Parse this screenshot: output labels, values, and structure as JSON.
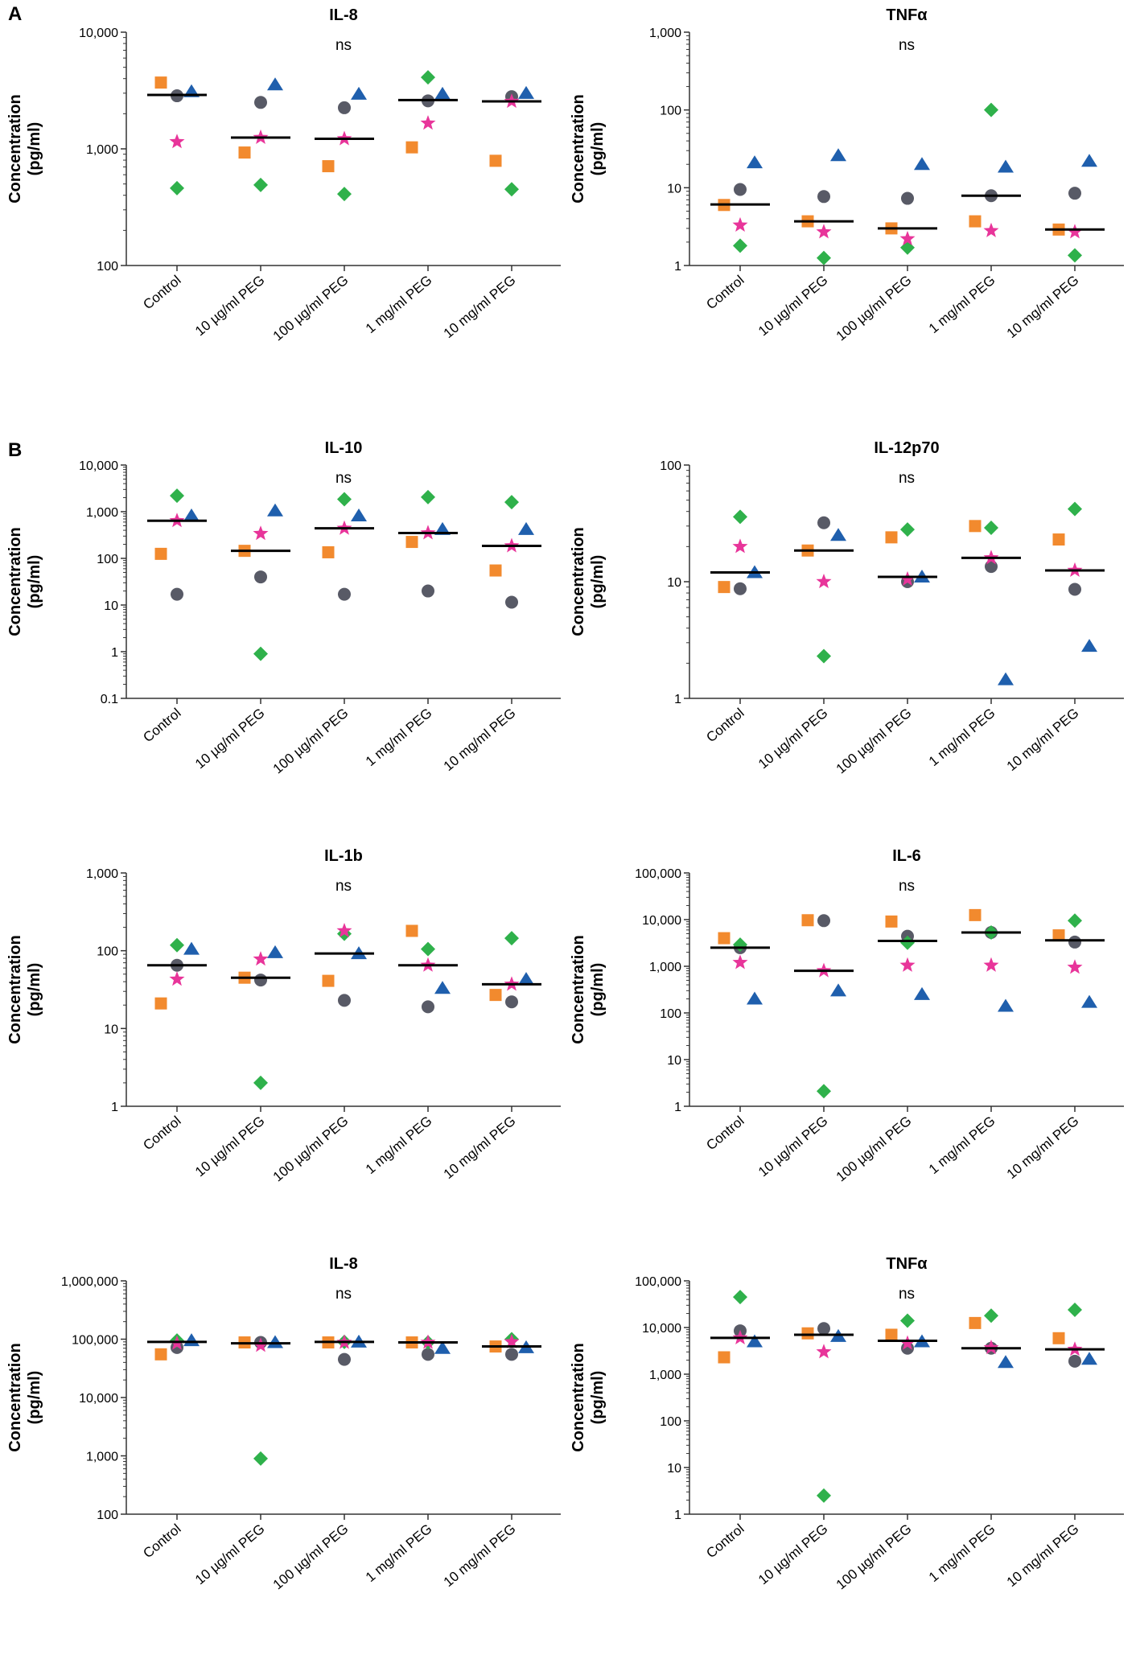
{
  "panel_labels": [
    "A",
    "B"
  ],
  "x_categories": [
    "Control",
    "10 µg/ml PEG",
    "100 µg/ml PEG",
    "1 mg/ml PEG",
    "10 mg/ml PEG"
  ],
  "colors": {
    "blue": "#1f5fad",
    "gray": "#585a66",
    "orange": "#f28a2e",
    "green": "#2fb14b",
    "pink": "#e8359a"
  },
  "chart_data": [
    {
      "type": "scatter",
      "title": "IL-8",
      "annotation": "ns",
      "ylabel": "Concentration (pg/ml)",
      "yscale": "log",
      "ylim": [
        100,
        10000
      ],
      "yticks": [
        100,
        1000,
        10000
      ],
      "ytick_labels": [
        "100",
        "1,000",
        "10,000"
      ],
      "categories": [
        "Control",
        "10 µg/ml PEG",
        "100 µg/ml PEG",
        "1 mg/ml PEG",
        "10 mg/ml PEG"
      ],
      "medians": [
        2900,
        1250,
        1220,
        2620,
        2550
      ],
      "series": [
        {
          "name": "triangle",
          "color": "blue",
          "values": [
            3100,
            3550,
            2950,
            2950,
            3000
          ]
        },
        {
          "name": "circle",
          "color": "gray",
          "values": [
            2850,
            2500,
            2250,
            2580,
            2800
          ]
        },
        {
          "name": "square",
          "color": "orange",
          "values": [
            3700,
            930,
            710,
            1030,
            790
          ]
        },
        {
          "name": "diamond",
          "color": "green",
          "values": [
            460,
            490,
            410,
            4100,
            450
          ]
        },
        {
          "name": "star",
          "color": "pink",
          "values": [
            1150,
            1250,
            1220,
            1660,
            2550
          ]
        }
      ]
    },
    {
      "type": "scatter",
      "title": "TNFα",
      "annotation": "ns",
      "ylabel": "Concentration (pg/ml)",
      "yscale": "log",
      "ylim": [
        1,
        1000
      ],
      "yticks": [
        1,
        10,
        100,
        1000
      ],
      "ytick_labels": [
        "1",
        "10",
        "100",
        "1,000"
      ],
      "categories": [
        "Control",
        "10 µg/ml PEG",
        "100 µg/ml PEG",
        "1 mg/ml PEG",
        "10 mg/ml PEG"
      ],
      "medians": [
        6.1,
        3.7,
        3.0,
        7.9,
        2.9
      ],
      "series": [
        {
          "name": "triangle",
          "color": "blue",
          "values": [
            21,
            26,
            20,
            18.5,
            22
          ]
        },
        {
          "name": "circle",
          "color": "gray",
          "values": [
            9.5,
            7.7,
            7.3,
            7.9,
            8.5
          ]
        },
        {
          "name": "square",
          "color": "orange",
          "values": [
            6.0,
            3.7,
            3.0,
            3.7,
            2.9
          ]
        },
        {
          "name": "diamond",
          "color": "green",
          "values": [
            1.8,
            1.25,
            1.7,
            100,
            1.35
          ]
        },
        {
          "name": "star",
          "color": "pink",
          "values": [
            3.3,
            2.7,
            2.2,
            2.8,
            2.7
          ]
        }
      ]
    },
    {
      "type": "scatter",
      "title": "IL-10",
      "annotation": "ns",
      "ylabel": "Concentration (pg/ml)",
      "yscale": "log",
      "ylim": [
        0.1,
        10000
      ],
      "yticks": [
        0.1,
        1,
        10,
        100,
        1000,
        10000
      ],
      "ytick_labels": [
        "0.1",
        "1",
        "10",
        "100",
        "1,000",
        "10,000"
      ],
      "categories": [
        "Control",
        "10 µg/ml PEG",
        "100 µg/ml PEG",
        "1 mg/ml PEG",
        "10 mg/ml PEG"
      ],
      "medians": [
        640,
        145,
        440,
        350,
        185
      ],
      "series": [
        {
          "name": "triangle",
          "color": "blue",
          "values": [
            820,
            1050,
            820,
            420,
            420
          ]
        },
        {
          "name": "circle",
          "color": "gray",
          "values": [
            17,
            40,
            17,
            20,
            11.5
          ]
        },
        {
          "name": "square",
          "color": "orange",
          "values": [
            125,
            145,
            135,
            225,
            55
          ]
        },
        {
          "name": "diamond",
          "color": "green",
          "values": [
            2200,
            0.9,
            1850,
            2050,
            1600
          ]
        },
        {
          "name": "star",
          "color": "pink",
          "values": [
            640,
            340,
            440,
            350,
            185
          ]
        }
      ]
    },
    {
      "type": "scatter",
      "title": "IL-12p70",
      "annotation": "ns",
      "ylabel": "Concentration (pg/ml)",
      "yscale": "log",
      "ylim": [
        1,
        100
      ],
      "yticks": [
        1,
        10,
        100
      ],
      "ytick_labels": [
        "1",
        "10",
        "100"
      ],
      "categories": [
        "Control",
        "10 µg/ml PEG",
        "100 µg/ml PEG",
        "1 mg/ml PEG",
        "10 mg/ml PEG"
      ],
      "medians": [
        12,
        18.5,
        11,
        16,
        12.5
      ],
      "series": [
        {
          "name": "triangle",
          "color": "blue",
          "values": [
            12,
            25,
            11,
            1.45,
            2.8
          ]
        },
        {
          "name": "circle",
          "color": "gray",
          "values": [
            8.7,
            32,
            10,
            13.5,
            8.6
          ]
        },
        {
          "name": "square",
          "color": "orange",
          "values": [
            9.0,
            18.5,
            24,
            30,
            23
          ]
        },
        {
          "name": "diamond",
          "color": "green",
          "values": [
            36,
            2.3,
            28,
            29,
            42
          ]
        },
        {
          "name": "star",
          "color": "pink",
          "values": [
            20,
            10,
            10.5,
            16,
            12.5
          ]
        }
      ]
    },
    {
      "type": "scatter",
      "title": "IL-1b",
      "annotation": "ns",
      "ylabel": "Concentration (pg/ml)",
      "yscale": "log",
      "ylim": [
        1,
        1000
      ],
      "yticks": [
        1,
        10,
        100,
        1000
      ],
      "ytick_labels": [
        "1",
        "10",
        "100",
        "1,000"
      ],
      "categories": [
        "Control",
        "10 µg/ml PEG",
        "100 µg/ml PEG",
        "1 mg/ml PEG",
        "10 mg/ml PEG"
      ],
      "medians": [
        65,
        45,
        92,
        65,
        37
      ],
      "series": [
        {
          "name": "triangle",
          "color": "blue",
          "values": [
            105,
            95,
            92,
            33,
            43
          ]
        },
        {
          "name": "circle",
          "color": "gray",
          "values": [
            65,
            42,
            23,
            19,
            22
          ]
        },
        {
          "name": "square",
          "color": "orange",
          "values": [
            21,
            45,
            41,
            180,
            27
          ]
        },
        {
          "name": "diamond",
          "color": "green",
          "values": [
            118,
            2.0,
            165,
            105,
            145
          ]
        },
        {
          "name": "star",
          "color": "pink",
          "values": [
            43,
            78,
            180,
            65,
            37
          ]
        }
      ]
    },
    {
      "type": "scatter",
      "title": "IL-6",
      "annotation": "ns",
      "ylabel": "Concentration (pg/ml)",
      "yscale": "log",
      "ylim": [
        1,
        100000
      ],
      "yticks": [
        1,
        10,
        100,
        1000,
        10000,
        100000
      ],
      "ytick_labels": [
        "1",
        "10",
        "100",
        "1,000",
        "10,000",
        "100,000"
      ],
      "categories": [
        "Control",
        "10 µg/ml PEG",
        "100 µg/ml PEG",
        "1 mg/ml PEG",
        "10 mg/ml PEG"
      ],
      "medians": [
        2500,
        800,
        3500,
        5300,
        3600
      ],
      "series": [
        {
          "name": "triangle",
          "color": "blue",
          "values": [
            200,
            300,
            250,
            140,
            170
          ]
        },
        {
          "name": "circle",
          "color": "gray",
          "values": [
            2500,
            9500,
            4400,
            5300,
            3300
          ]
        },
        {
          "name": "square",
          "color": "orange",
          "values": [
            4000,
            9700,
            9100,
            12500,
            4600
          ]
        },
        {
          "name": "diamond",
          "color": "green",
          "values": [
            2900,
            2.1,
            3200,
            5300,
            9500
          ]
        },
        {
          "name": "star",
          "color": "pink",
          "values": [
            1200,
            800,
            1050,
            1050,
            950
          ]
        }
      ]
    },
    {
      "type": "scatter",
      "title": "IL-8",
      "annotation": "ns",
      "ylabel": "Concentration (pg/ml)",
      "yscale": "log",
      "ylim": [
        100,
        1000000
      ],
      "yticks": [
        100,
        1000,
        10000,
        100000,
        1000000
      ],
      "ytick_labels": [
        "100",
        "1,000",
        "10,000",
        "100,000",
        "1,000,000"
      ],
      "categories": [
        "Control",
        "10 µg/ml PEG",
        "100 µg/ml PEG",
        "1 mg/ml PEG",
        "10 mg/ml PEG"
      ],
      "medians": [
        90000,
        85000,
        90000,
        88000,
        75000
      ],
      "series": [
        {
          "name": "triangle",
          "color": "blue",
          "values": [
            95000,
            88000,
            90000,
            70000,
            72000
          ]
        },
        {
          "name": "circle",
          "color": "gray",
          "values": [
            72000,
            88000,
            45000,
            55000,
            55000
          ]
        },
        {
          "name": "square",
          "color": "orange",
          "values": [
            55000,
            88000,
            88000,
            88000,
            75000
          ]
        },
        {
          "name": "diamond",
          "color": "green",
          "values": [
            95000,
            900,
            90000,
            88000,
            100000
          ]
        },
        {
          "name": "star",
          "color": "pink",
          "values": [
            85000,
            78000,
            88000,
            88000,
            90000
          ]
        }
      ]
    },
    {
      "type": "scatter",
      "title": "TNFα",
      "annotation": "ns",
      "ylabel": "Concentration (pg/ml)",
      "yscale": "log",
      "ylim": [
        1,
        100000
      ],
      "yticks": [
        1,
        10,
        100,
        1000,
        10000,
        100000
      ],
      "ytick_labels": [
        "1",
        "10",
        "100",
        "1,000",
        "10,000",
        "100,000"
      ],
      "categories": [
        "Control",
        "10 µg/ml PEG",
        "100 µg/ml PEG",
        "1 mg/ml PEG",
        "10 mg/ml PEG"
      ],
      "medians": [
        6000,
        7000,
        5200,
        3600,
        3400
      ],
      "series": [
        {
          "name": "triangle",
          "color": "blue",
          "values": [
            5000,
            6500,
            5000,
            1800,
            2100
          ]
        },
        {
          "name": "circle",
          "color": "gray",
          "values": [
            8500,
            9500,
            3600,
            3600,
            1900
          ]
        },
        {
          "name": "square",
          "color": "orange",
          "values": [
            2300,
            7500,
            7000,
            12500,
            5900
          ]
        },
        {
          "name": "diamond",
          "color": "green",
          "values": [
            45000,
            2.5,
            14000,
            18000,
            24000
          ]
        },
        {
          "name": "star",
          "color": "pink",
          "values": [
            6000,
            3000,
            4600,
            3700,
            3400
          ]
        }
      ]
    }
  ]
}
